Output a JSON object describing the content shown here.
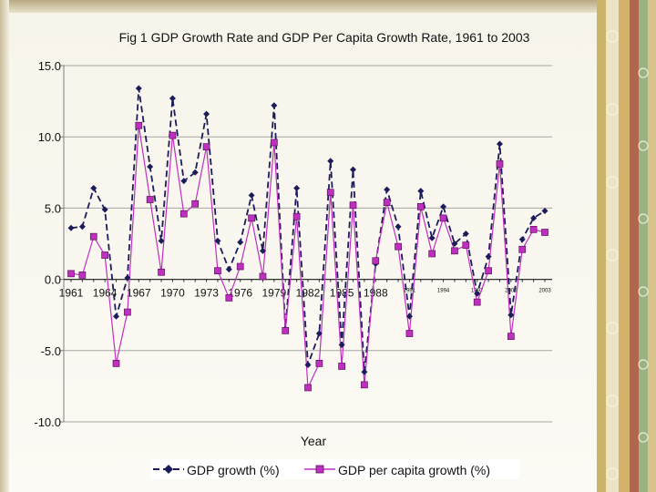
{
  "chart_data": {
    "type": "line",
    "title": "Fig 1 GDP Growth Rate and GDP Per Capita Growth Rate, 1961 to 2003",
    "xlabel": "Year",
    "ylabel": "",
    "ylim": [
      -10,
      15
    ],
    "yticks": [
      15,
      10,
      5,
      0,
      -5,
      -10
    ],
    "ytick_labels": [
      "15.0",
      "10.0",
      "5.0",
      "0.0",
      "-5.0",
      "-10.0"
    ],
    "x": [
      1961,
      1962,
      1963,
      1964,
      1965,
      1966,
      1967,
      1968,
      1969,
      1970,
      1971,
      1972,
      1973,
      1974,
      1975,
      1976,
      1977,
      1978,
      1979,
      1980,
      1981,
      1982,
      1983,
      1984,
      1985,
      1986,
      1987,
      1988,
      1989,
      1990,
      1991,
      1992,
      1993,
      1994,
      1995,
      1996,
      1997,
      1998,
      1999,
      2000,
      2001,
      2002,
      2003
    ],
    "xtick_labels": [
      {
        "year": 1961,
        "label": "1961",
        "size": "large"
      },
      {
        "year": 1964,
        "label": "1964",
        "size": "large"
      },
      {
        "year": 1967,
        "label": "1967",
        "size": "large"
      },
      {
        "year": 1970,
        "label": "1970",
        "size": "large"
      },
      {
        "year": 1973,
        "label": "1973",
        "size": "large"
      },
      {
        "year": 1976,
        "label": "1976",
        "size": "large"
      },
      {
        "year": 1979,
        "label": "1979",
        "size": "large"
      },
      {
        "year": 1982,
        "label": "1982",
        "size": "large"
      },
      {
        "year": 1985,
        "label": "1985",
        "size": "large"
      },
      {
        "year": 1988,
        "label": "1988",
        "size": "large"
      },
      {
        "year": 1991,
        "label": "1991",
        "size": "small"
      },
      {
        "year": 1994,
        "label": "1994",
        "size": "small"
      },
      {
        "year": 1997,
        "label": "1997",
        "size": "small"
      },
      {
        "year": 2000,
        "label": "2000",
        "size": "small"
      },
      {
        "year": 2003,
        "label": "2003",
        "size": "small"
      }
    ],
    "grid": true,
    "legend_position": "bottom-center",
    "series": [
      {
        "name": "GDP growth (%)",
        "color": "#1c1c5a",
        "line": "dashed",
        "marker": "diamond",
        "values": [
          3.6,
          3.7,
          6.4,
          4.9,
          -2.6,
          0.1,
          13.4,
          7.9,
          2.7,
          12.7,
          6.9,
          7.5,
          11.6,
          2.7,
          0.7,
          2.6,
          5.9,
          2.0,
          12.2,
          -3.5,
          6.4,
          -6.0,
          -3.8,
          8.3,
          -4.6,
          7.7,
          -6.5,
          1.1,
          6.3,
          3.7,
          -2.6,
          6.2,
          2.9,
          5.1,
          2.5,
          3.2,
          -1.0,
          1.6,
          9.5,
          -2.5,
          2.8,
          4.3,
          4.8
        ]
      },
      {
        "name": "GDP per capita growth (%)",
        "color": "#c030c0",
        "line": "solid",
        "marker": "square",
        "values": [
          0.4,
          0.3,
          3.0,
          1.7,
          -5.9,
          -2.3,
          10.8,
          5.6,
          0.5,
          10.1,
          4.6,
          5.3,
          9.3,
          0.6,
          -1.3,
          0.9,
          4.3,
          0.2,
          9.6,
          -3.6,
          4.4,
          -7.6,
          -5.9,
          6.1,
          -6.1,
          5.2,
          -7.4,
          1.3,
          5.4,
          2.3,
          -3.8,
          5.1,
          1.8,
          4.3,
          2.0,
          2.4,
          -1.6,
          0.6,
          8.1,
          -4.0,
          2.1,
          3.5,
          3.3
        ]
      }
    ]
  },
  "theme": {
    "axis_color": "#7f7f7f",
    "grid_color": "#a5a5a5",
    "text_color": "#111111",
    "deco_colors": [
      "#c9b46a",
      "#e4d7a8",
      "#d4b26b",
      "#8aa57a",
      "#c45f4f",
      "#e9e2c8"
    ]
  }
}
